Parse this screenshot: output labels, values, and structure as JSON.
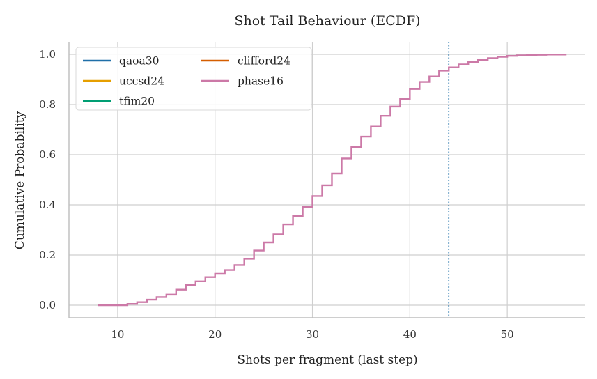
{
  "chart_data": {
    "type": "line",
    "subtype": "ecdf-step",
    "title": "Shot Tail Behaviour (ECDF)",
    "xlabel": "Shots per fragment (last step)",
    "ylabel": "Cumulative Probability",
    "xlim": [
      5,
      58
    ],
    "ylim": [
      -0.05,
      1.05
    ],
    "xticks": [
      10,
      20,
      30,
      40,
      50
    ],
    "yticks": [
      0.0,
      0.2,
      0.4,
      0.6,
      0.8,
      1.0
    ],
    "xtick_labels": [
      "10",
      "20",
      "30",
      "40",
      "50"
    ],
    "ytick_labels": [
      "0.0",
      "0.2",
      "0.4",
      "0.6",
      "0.8",
      "1.0"
    ],
    "grid": true,
    "legend_position": "top-left",
    "legend_columns": 2,
    "series": [
      {
        "name": "qaoa30",
        "color": "#1f6fa8",
        "x": [],
        "y": []
      },
      {
        "name": "uccsd24",
        "color": "#e69f00",
        "x": [],
        "y": []
      },
      {
        "name": "tfim20",
        "color": "#009e73",
        "x": [],
        "y": []
      },
      {
        "name": "clifford24",
        "color": "#d55e00",
        "x": [],
        "y": []
      },
      {
        "name": "phase16",
        "color": "#cc79a7",
        "x": [
          8,
          9,
          10,
          11,
          12,
          13,
          14,
          15,
          16,
          17,
          18,
          19,
          20,
          21,
          22,
          23,
          24,
          25,
          26,
          27,
          28,
          29,
          30,
          31,
          32,
          33,
          34,
          35,
          36,
          37,
          38,
          39,
          40,
          41,
          42,
          43,
          44,
          45,
          46,
          47,
          48,
          49,
          50,
          51,
          52,
          53,
          54,
          55,
          56
        ],
        "y": [
          0.0,
          0.0,
          0.0,
          0.005,
          0.012,
          0.022,
          0.032,
          0.042,
          0.062,
          0.08,
          0.095,
          0.112,
          0.125,
          0.14,
          0.16,
          0.185,
          0.218,
          0.25,
          0.282,
          0.322,
          0.355,
          0.392,
          0.435,
          0.478,
          0.525,
          0.585,
          0.63,
          0.672,
          0.712,
          0.755,
          0.792,
          0.822,
          0.862,
          0.89,
          0.912,
          0.935,
          0.948,
          0.96,
          0.97,
          0.978,
          0.985,
          0.99,
          0.994,
          0.996,
          0.997,
          0.998,
          0.999,
          0.999,
          1.0
        ]
      }
    ],
    "reference_lines": [
      {
        "axis": "x",
        "value": 44,
        "style": "dotted",
        "color": "#1f6fa8"
      }
    ]
  }
}
